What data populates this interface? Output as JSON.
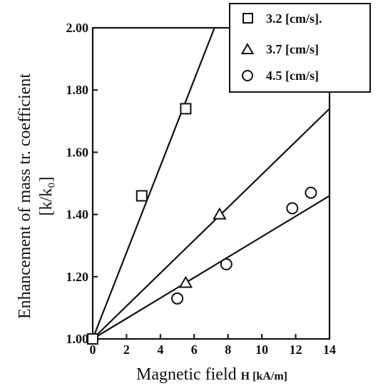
{
  "chart_data": {
    "type": "scatter",
    "xlabel_main": "Magnetic field ",
    "xlabel_symbol": "H",
    "xlabel_unit": " [kA/m]",
    "ylabel_line1": "Enhancement of mass tr. coefficient",
    "ylabel_line2": "[k/k₀]",
    "xlim": [
      0,
      14
    ],
    "ylim": [
      1.0,
      2.0
    ],
    "x_ticks": [
      0,
      2,
      4,
      6,
      8,
      10,
      12,
      14
    ],
    "x_tick_labels": [
      "0",
      "2",
      "4",
      "6",
      "8",
      "10",
      "12",
      "14"
    ],
    "y_ticks": [
      1.0,
      1.2,
      1.4,
      1.6,
      1.8,
      2.0
    ],
    "y_tick_labels": [
      "1.00",
      "1.20",
      "1.40",
      "1.60",
      "1.80",
      "2.00"
    ],
    "grid": false,
    "legend_position": "top-right",
    "series": [
      {
        "name": "3.2  [cm/s].",
        "marker": "square",
        "points": [
          [
            0,
            1.0
          ],
          [
            2.9,
            1.46
          ],
          [
            5.5,
            1.74
          ]
        ],
        "fit": [
          [
            0,
            1.0
          ],
          [
            7.2,
            2.0
          ]
        ]
      },
      {
        "name": "3.7  [cm/s]",
        "marker": "triangle",
        "points": [
          [
            5.5,
            1.18
          ],
          [
            7.5,
            1.4
          ]
        ],
        "fit": [
          [
            0,
            1.0
          ],
          [
            14,
            1.74
          ]
        ]
      },
      {
        "name": "4.5  [cm/s]",
        "marker": "circle",
        "points": [
          [
            5.0,
            1.13
          ],
          [
            7.9,
            1.24
          ],
          [
            11.8,
            1.42
          ],
          [
            12.9,
            1.47
          ]
        ],
        "fit": [
          [
            0,
            1.0
          ],
          [
            14,
            1.46
          ]
        ]
      }
    ]
  }
}
